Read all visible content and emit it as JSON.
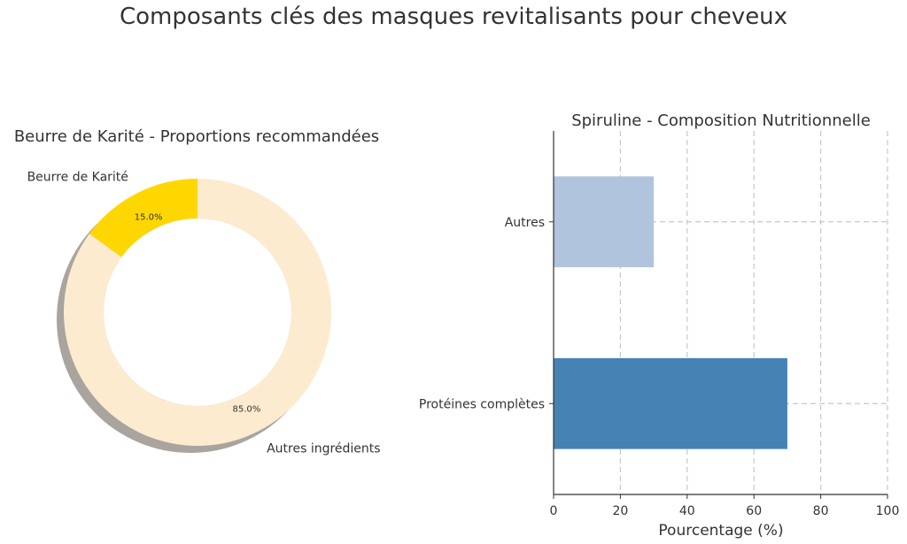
{
  "title": "Composants clés des masques revitalisants pour cheveux",
  "colors": {
    "shea": "#FFD700",
    "others_donut": "#FDEBD0",
    "shadow": "#A9A49E",
    "protein_bar": "#4682B4",
    "others_bar": "#B0C4DE",
    "grid": "#c8c8c8"
  },
  "chart_data": [
    {
      "type": "pie",
      "donut": true,
      "title": "Beurre de Karité - Proportions recommandées",
      "labels": [
        "Beurre de Karité",
        "Autres ingrédients"
      ],
      "values": [
        15,
        85
      ],
      "value_labels": [
        "15.0%",
        "85.0%"
      ],
      "shadow": true
    },
    {
      "type": "bar",
      "orientation": "horizontal",
      "title": "Spiruline - Composition Nutritionnelle",
      "categories": [
        "Protéines complètes",
        "Autres"
      ],
      "values": [
        70,
        30
      ],
      "xlabel": "Pourcentage (%)",
      "ylabel": "",
      "xlim": [
        0,
        100
      ],
      "xticks": [
        "0",
        "20",
        "40",
        "60",
        "80",
        "100"
      ],
      "grid": true
    }
  ]
}
